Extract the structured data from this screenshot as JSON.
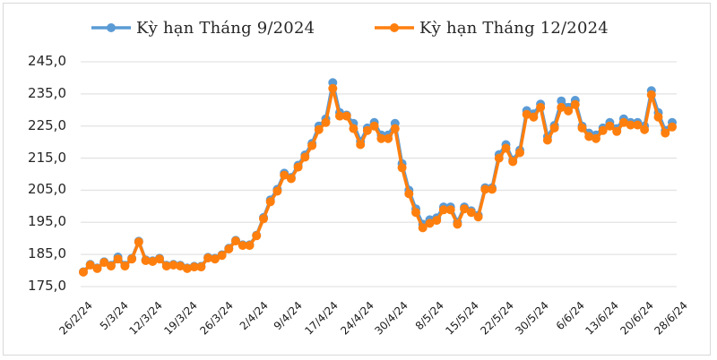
{
  "legend": {
    "series1_label": "Kỳ hạn Tháng 9/2024",
    "series2_label": "Kỳ hạn Tháng 12/2024"
  },
  "colors": {
    "series1": "#5b9bd5",
    "series2": "#ff7f0e",
    "grid": "#e3e3e3",
    "border": "#d9d9d9"
  },
  "chart_data": {
    "type": "line",
    "title": "",
    "xlabel": "",
    "ylabel": "",
    "ylim": [
      175,
      245
    ],
    "grid": true,
    "legend_position": "top",
    "y_ticks": [
      "245,0",
      "235,0",
      "225,0",
      "215,0",
      "205,0",
      "195,0",
      "185,0",
      "175,0"
    ],
    "x_tick_labels": [
      "26/2/24",
      "5/3/24",
      "12/3/24",
      "19/3/24",
      "26/3/24",
      "2/4/24",
      "9/4/24",
      "17/4/24",
      "24/4/24",
      "30/4/24",
      "8/5/24",
      "15/5/24",
      "22/5/24",
      "30/5/24",
      "6/6/24",
      "13/6/24",
      "20/6/24",
      "28/6/24"
    ],
    "series": [
      {
        "name": "Kỳ hạn Tháng 9/2024",
        "values": [
          179.6,
          181.9,
          180.8,
          182.7,
          181.6,
          184.2,
          181.6,
          183.8,
          189.1,
          183.3,
          183.0,
          183.8,
          181.6,
          181.9,
          181.6,
          180.8,
          181.3,
          181.3,
          184.1,
          183.8,
          184.9,
          186.9,
          189.4,
          188.0,
          188.0,
          191.0,
          196.5,
          202.0,
          205.3,
          210.3,
          209.0,
          212.8,
          216.0,
          219.6,
          225.0,
          227.2,
          238.5,
          229.2,
          228.4,
          225.8,
          220.2,
          224.4,
          226.1,
          222.2,
          222.2,
          225.8,
          213.3,
          205.0,
          199.2,
          194.4,
          195.8,
          196.4,
          199.8,
          199.8,
          195.0,
          199.8,
          198.6,
          197.2,
          205.8,
          205.8,
          216.1,
          219.2,
          214.4,
          217.5,
          229.8,
          228.8,
          231.8,
          221.7,
          225.2,
          232.8,
          230.8,
          233.0,
          225.0,
          222.8,
          222.2,
          224.4,
          226.1,
          224.2,
          227.2,
          226.1,
          226.1,
          225.0,
          236.0,
          229.2,
          223.6,
          226.1
        ]
      },
      {
        "name": "Kỳ hạn Tháng 12/2024",
        "values": [
          179.5,
          181.7,
          180.6,
          182.5,
          181.4,
          183.6,
          181.4,
          183.6,
          188.9,
          183.1,
          182.8,
          183.6,
          181.4,
          181.7,
          181.4,
          180.6,
          181.1,
          181.1,
          183.9,
          183.6,
          184.7,
          186.7,
          189.2,
          187.8,
          187.8,
          190.8,
          196.1,
          201.4,
          204.7,
          209.7,
          208.6,
          212.2,
          215.3,
          218.9,
          223.9,
          226.1,
          236.7,
          228.1,
          228.1,
          224.2,
          219.2,
          223.6,
          225.0,
          221.1,
          221.1,
          224.2,
          212.0,
          203.9,
          198.1,
          193.3,
          194.7,
          195.6,
          198.9,
          198.9,
          194.4,
          199.2,
          198.1,
          196.7,
          205.3,
          205.3,
          215.0,
          218.1,
          213.9,
          216.7,
          228.6,
          227.8,
          230.8,
          220.6,
          224.4,
          230.8,
          229.7,
          231.7,
          224.4,
          221.7,
          221.1,
          223.6,
          225.0,
          223.3,
          226.1,
          225.3,
          225.3,
          223.9,
          234.7,
          227.8,
          222.8,
          224.7
        ]
      }
    ]
  }
}
